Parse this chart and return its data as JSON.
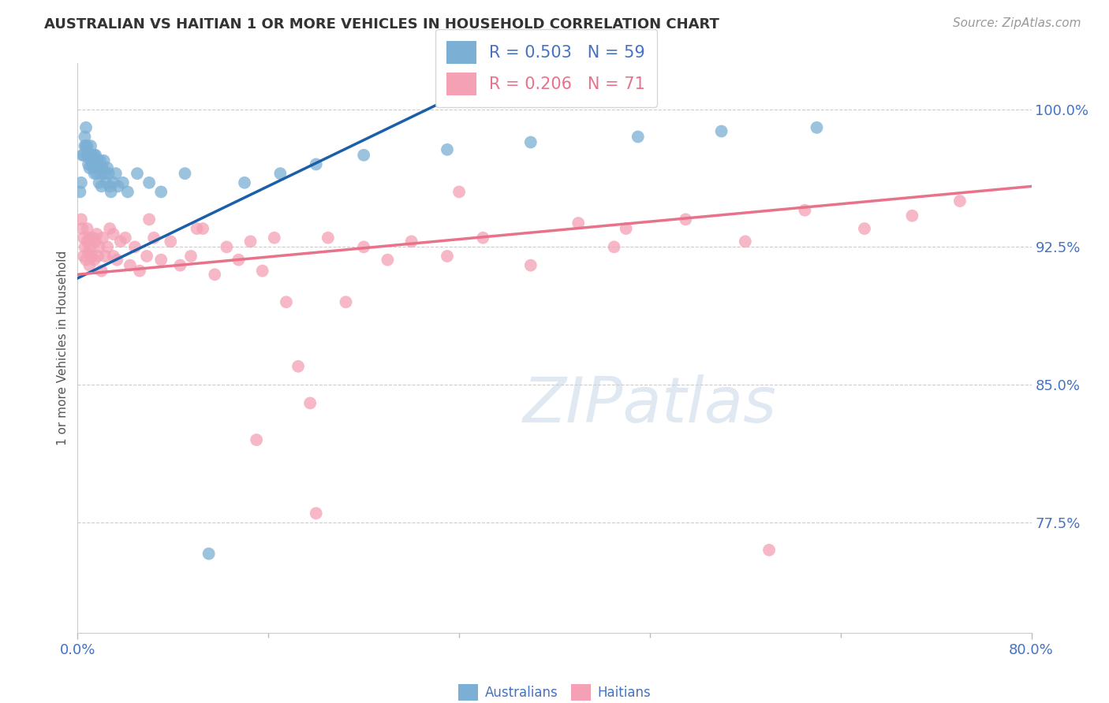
{
  "title": "AUSTRALIAN VS HAITIAN 1 OR MORE VEHICLES IN HOUSEHOLD CORRELATION CHART",
  "source": "Source: ZipAtlas.com",
  "ylabel": "1 or more Vehicles in Household",
  "ytick_labels": [
    "100.0%",
    "92.5%",
    "85.0%",
    "77.5%"
  ],
  "ytick_values": [
    1.0,
    0.925,
    0.85,
    0.775
  ],
  "xmin": 0.0,
  "xmax": 0.8,
  "ymin": 0.715,
  "ymax": 1.025,
  "australian_color": "#7bafd4",
  "haitian_color": "#f4a0b5",
  "australian_line_color": "#1a5fa8",
  "haitian_line_color": "#e8728a",
  "R_australian": 0.503,
  "N_australian": 59,
  "R_haitian": 0.206,
  "N_haitian": 71,
  "watermark_text": "ZIPatlas",
  "background_color": "#ffffff",
  "grid_color": "#cccccc",
  "title_color": "#333333",
  "label_color": "#4472c4",
  "aus_line_x0": 0.0,
  "aus_line_y0": 0.908,
  "aus_line_x1": 0.3,
  "aus_line_y1": 1.002,
  "hai_line_x0": 0.0,
  "hai_line_y0": 0.91,
  "hai_line_x1": 0.8,
  "hai_line_y1": 0.958,
  "australian_x": [
    0.002,
    0.003,
    0.004,
    0.005,
    0.006,
    0.006,
    0.007,
    0.007,
    0.008,
    0.008,
    0.009,
    0.009,
    0.01,
    0.01,
    0.011,
    0.011,
    0.012,
    0.012,
    0.013,
    0.013,
    0.014,
    0.014,
    0.015,
    0.015,
    0.016,
    0.016,
    0.017,
    0.018,
    0.018,
    0.019,
    0.02,
    0.02,
    0.021,
    0.022,
    0.023,
    0.024,
    0.025,
    0.026,
    0.027,
    0.028,
    0.03,
    0.032,
    0.034,
    0.038,
    0.042,
    0.05,
    0.06,
    0.07,
    0.09,
    0.11,
    0.14,
    0.17,
    0.2,
    0.24,
    0.31,
    0.38,
    0.47,
    0.54,
    0.62
  ],
  "australian_y": [
    0.955,
    0.96,
    0.975,
    0.975,
    0.98,
    0.985,
    0.98,
    0.99,
    0.975,
    0.98,
    0.975,
    0.97,
    0.975,
    0.968,
    0.98,
    0.972,
    0.975,
    0.97,
    0.972,
    0.968,
    0.975,
    0.965,
    0.975,
    0.97,
    0.968,
    0.965,
    0.972,
    0.968,
    0.96,
    0.972,
    0.965,
    0.958,
    0.968,
    0.972,
    0.965,
    0.96,
    0.968,
    0.965,
    0.958,
    0.955,
    0.96,
    0.965,
    0.958,
    0.96,
    0.955,
    0.965,
    0.96,
    0.955,
    0.965,
    0.758,
    0.96,
    0.965,
    0.97,
    0.975,
    0.978,
    0.982,
    0.985,
    0.988,
    0.99
  ],
  "haitian_x": [
    0.003,
    0.004,
    0.005,
    0.005,
    0.006,
    0.007,
    0.008,
    0.008,
    0.009,
    0.01,
    0.01,
    0.011,
    0.012,
    0.013,
    0.014,
    0.015,
    0.016,
    0.017,
    0.018,
    0.02,
    0.021,
    0.023,
    0.025,
    0.027,
    0.03,
    0.033,
    0.036,
    0.04,
    0.044,
    0.048,
    0.052,
    0.058,
    0.064,
    0.07,
    0.078,
    0.086,
    0.095,
    0.105,
    0.115,
    0.125,
    0.135,
    0.145,
    0.155,
    0.165,
    0.175,
    0.185,
    0.195,
    0.21,
    0.225,
    0.24,
    0.26,
    0.28,
    0.31,
    0.34,
    0.38,
    0.42,
    0.46,
    0.51,
    0.56,
    0.61,
    0.66,
    0.7,
    0.74,
    0.03,
    0.06,
    0.1,
    0.15,
    0.2,
    0.32,
    0.45,
    0.58
  ],
  "haitian_y": [
    0.94,
    0.935,
    0.93,
    0.92,
    0.925,
    0.918,
    0.928,
    0.935,
    0.922,
    0.93,
    0.915,
    0.925,
    0.92,
    0.93,
    0.918,
    0.928,
    0.932,
    0.92,
    0.925,
    0.912,
    0.93,
    0.92,
    0.925,
    0.935,
    0.92,
    0.918,
    0.928,
    0.93,
    0.915,
    0.925,
    0.912,
    0.92,
    0.93,
    0.918,
    0.928,
    0.915,
    0.92,
    0.935,
    0.91,
    0.925,
    0.918,
    0.928,
    0.912,
    0.93,
    0.895,
    0.86,
    0.84,
    0.93,
    0.895,
    0.925,
    0.918,
    0.928,
    0.92,
    0.93,
    0.915,
    0.938,
    0.935,
    0.94,
    0.928,
    0.945,
    0.935,
    0.942,
    0.95,
    0.932,
    0.94,
    0.935,
    0.82,
    0.78,
    0.955,
    0.925,
    0.76
  ]
}
